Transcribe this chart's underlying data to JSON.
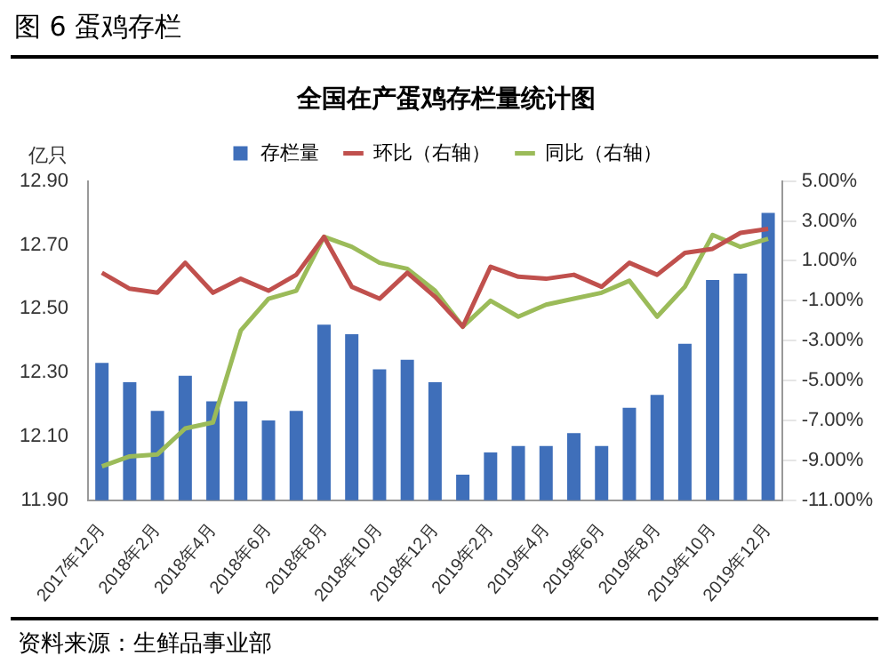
{
  "chart_data": {
    "type": "bar",
    "title": "全国在产蛋鸡存栏量统计图",
    "subtitle": "图 6  蛋鸡存栏",
    "ylabel": "亿只",
    "annotations": [
      "资料来源：生鲜品事业部"
    ],
    "categories": [
      "2017年12月",
      null,
      "2018年2月",
      null,
      "2018年4月",
      null,
      "2018年6月",
      null,
      "2018年8月",
      null,
      "2018年10月",
      null,
      "2018年12月",
      null,
      "2019年2月",
      null,
      "2019年4月",
      null,
      "2019年6月",
      null,
      "2019年8月",
      null,
      "2019年10月",
      null,
      "2019年12月"
    ],
    "series": [
      {
        "name": "存栏量",
        "color": "#3f6fba",
        "values": [
          12.33,
          12.27,
          12.18,
          12.29,
          12.21,
          12.21,
          12.15,
          12.18,
          12.45,
          12.42,
          12.31,
          12.34,
          12.27,
          11.98,
          12.05,
          12.07,
          12.07,
          12.11,
          12.07,
          12.19,
          12.23,
          12.39,
          12.59,
          12.61,
          12.8
        ]
      },
      {
        "name": "环比（右轴）",
        "type": "line",
        "axis": "y2",
        "color": "#c0504d",
        "values": [
          0.4,
          -0.4,
          -0.6,
          0.9,
          -0.6,
          0.1,
          -0.5,
          0.3,
          2.2,
          -0.3,
          -0.9,
          0.4,
          -0.8,
          -2.3,
          0.7,
          0.2,
          0.1,
          0.3,
          -0.3,
          0.9,
          0.3,
          1.4,
          1.6,
          2.4,
          2.6
        ]
      },
      {
        "name": "同比（右轴）",
        "type": "line",
        "axis": "y2",
        "color": "#9bbb59",
        "values": [
          -9.3,
          -8.8,
          -8.7,
          -7.4,
          -7.1,
          -2.5,
          -0.9,
          -0.5,
          2.2,
          1.7,
          0.9,
          0.6,
          -0.5,
          -2.3,
          -1.0,
          -1.8,
          -1.2,
          -0.9,
          -0.6,
          0.0,
          -1.8,
          -0.3,
          2.3,
          1.7,
          2.1
        ]
      }
    ],
    "ylim": [
      11.9,
      12.9
    ],
    "yticks": [
      {
        "value": 11.9,
        "label": "11.90"
      },
      {
        "value": 12.1,
        "label": "12.10"
      },
      {
        "value": 12.3,
        "label": "12.30"
      },
      {
        "value": 12.5,
        "label": "12.50"
      },
      {
        "value": 12.7,
        "label": "12.70"
      },
      {
        "value": 12.9,
        "label": "12.90"
      }
    ],
    "y2lim": [
      -11,
      5
    ],
    "y2ticks": [
      {
        "value": -11,
        "label": "-11.00%"
      },
      {
        "value": -9,
        "label": "-9.00%"
      },
      {
        "value": -7,
        "label": "-7.00%"
      },
      {
        "value": -5,
        "label": "-5.00%"
      },
      {
        "value": -3,
        "label": "-3.00%"
      },
      {
        "value": -1,
        "label": "-1.00%"
      },
      {
        "value": 1,
        "label": "1.00%"
      },
      {
        "value": 3,
        "label": "3.00%"
      },
      {
        "value": 5,
        "label": "5.00%"
      }
    ],
    "legend": "top",
    "grid": false,
    "marker": "none",
    "line_style": "solid"
  }
}
